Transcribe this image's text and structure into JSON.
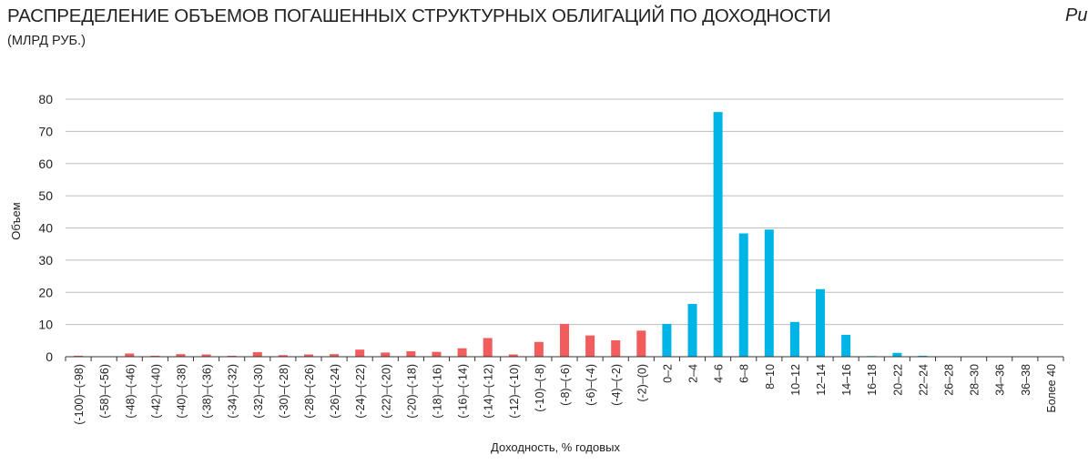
{
  "header": {
    "title": "РАСПРЕДЕЛЕНИЕ ОБЪЕМОВ ПОГАШЕННЫХ СТРУКТУРНЫХ ОБЛИГАЦИЙ ПО ДОХОДНОСТИ",
    "subtitle": "(МЛРД РУБ.)",
    "figure_label": "Рис"
  },
  "chart_data": {
    "type": "bar",
    "title": "РАСПРЕДЕЛЕНИЕ ОБЪЕМОВ ПОГАШЕННЫХ СТРУКТУРНЫХ ОБЛИГАЦИЙ ПО ДОХОДНОСТИ",
    "subtitle": "(МЛРД РУБ.)",
    "xlabel": "Доходность, % годовых",
    "ylabel": "Объем",
    "ylim": [
      0,
      80
    ],
    "yticks": [
      0,
      10,
      20,
      30,
      40,
      50,
      60,
      70,
      80
    ],
    "grid": true,
    "colors": {
      "negative": "#f25c5c",
      "positive": "#00b4e6",
      "grid": "#bdbdbd",
      "axis": "#333333"
    },
    "categories": [
      "(-100)–(-98)",
      "(-58)–(-56)",
      "(-48)–(-46)",
      "(-42)–(-40)",
      "(-40)–(-38)",
      "(-38)–(-36)",
      "(-34)–(-32)",
      "(-32)–(-30)",
      "(-30)–(-28)",
      "(-28)–(-26)",
      "(-26)–(-24)",
      "(-24)–(-22)",
      "(-22)–(-20)",
      "(-20)–(-18)",
      "(-18)–(-16)",
      "(-16)–(-14)",
      "(-14)–(-12)",
      "(-12)–(-10)",
      "(-10)–(-8)",
      "(-8)–(-6)",
      "(-6)–(-4)",
      "(-4)–(-2)",
      "(-2)–(0)",
      "0–2",
      "2–4",
      "4–6",
      "6–8",
      "8–10",
      "10–12",
      "12–14",
      "14–16",
      "16–18",
      "20–22",
      "22–24",
      "26–28",
      "28–30",
      "34–36",
      "36–38",
      "Более 40"
    ],
    "values": [
      0.3,
      0.1,
      1.0,
      0.3,
      0.8,
      0.7,
      0.3,
      1.4,
      0.5,
      0.7,
      0.8,
      2.2,
      1.3,
      1.7,
      1.5,
      2.6,
      5.8,
      0.7,
      4.6,
      10.2,
      6.6,
      5.1,
      8.1,
      10.2,
      16.4,
      76.0,
      38.3,
      39.5,
      10.8,
      21.0,
      6.8,
      0.2,
      1.2,
      0.3,
      0.1,
      0.1,
      0.1,
      0.1,
      0.1
    ],
    "series_color_by_sign": [
      "neg",
      "neg",
      "neg",
      "neg",
      "neg",
      "neg",
      "neg",
      "neg",
      "neg",
      "neg",
      "neg",
      "neg",
      "neg",
      "neg",
      "neg",
      "neg",
      "neg",
      "neg",
      "neg",
      "neg",
      "neg",
      "neg",
      "neg",
      "pos",
      "pos",
      "pos",
      "pos",
      "pos",
      "pos",
      "pos",
      "pos",
      "pos",
      "pos",
      "pos",
      "pos",
      "pos",
      "pos",
      "pos",
      "pos"
    ]
  }
}
